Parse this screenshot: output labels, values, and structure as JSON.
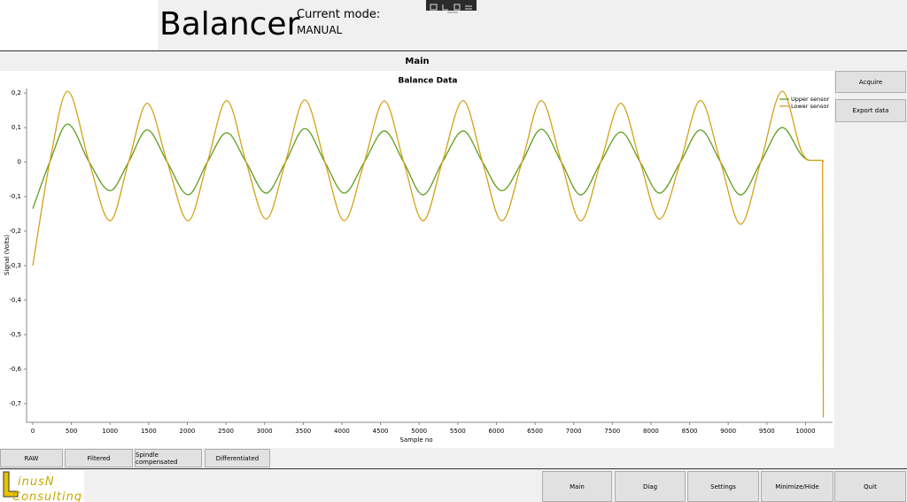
{
  "header": {
    "title": "Balancer",
    "mode_label": "Current mode:",
    "mode": "MANUAL"
  },
  "panel_title": "Main",
  "side_buttons": [
    "Acquire",
    "Export data"
  ],
  "tabs": [
    "RAW",
    "Filtered",
    "Spindle compensated",
    "Differentiated"
  ],
  "nav_buttons": [
    "Main",
    "Diag",
    "Settings",
    "Minimize/Hide",
    "Quit"
  ],
  "logo": [
    "inusN",
    "Consulting"
  ],
  "chart_data": {
    "type": "line",
    "title": "Balance Data",
    "x_label": "Sample no",
    "y_label": "Signal (Volts)",
    "x": [
      0,
      220,
      450,
      730,
      1000,
      1240,
      1480,
      1740,
      2010,
      2260,
      2510,
      2760,
      3020,
      3270,
      3520,
      3780,
      4030,
      4290,
      4550,
      4800,
      5050,
      5300,
      5570,
      5820,
      6070,
      6330,
      6580,
      6840,
      7090,
      7350,
      7610,
      7860,
      8110,
      8380,
      8640,
      8900,
      9160,
      9420,
      9700,
      9950,
      10050,
      10220,
      10230
    ],
    "series": [
      {
        "name": "Upper sensor",
        "color": "#5c9e1c",
        "values": [
          -0.135,
          0,
          0.11,
          0,
          -0.083,
          0,
          0.093,
          0,
          -0.095,
          0,
          0.085,
          0,
          -0.09,
          0,
          0.097,
          0,
          -0.09,
          0,
          0.09,
          0,
          -0.095,
          0,
          0.09,
          0,
          -0.083,
          0,
          0.095,
          0,
          -0.095,
          0,
          0.087,
          0,
          -0.09,
          0,
          0.093,
          0,
          -0.095,
          0,
          0.1,
          0.02,
          0.005,
          0.005,
          0
        ]
      },
      {
        "name": "Lower sensor",
        "color": "#d4a017",
        "values": [
          -0.3,
          0,
          0.205,
          0,
          -0.17,
          0,
          0.17,
          0,
          -0.17,
          0,
          0.178,
          0,
          -0.165,
          0,
          0.18,
          0,
          -0.17,
          0,
          0.177,
          0,
          -0.17,
          0,
          0.178,
          0,
          -0.17,
          0,
          0.178,
          0,
          -0.17,
          0,
          0.17,
          0,
          -0.165,
          0,
          0.178,
          0,
          -0.18,
          0,
          0.205,
          0.03,
          0.005,
          0.005,
          -0.74
        ]
      }
    ],
    "xlim": [
      -80,
      10350
    ],
    "ylim": [
      -0.754,
      0.213
    ],
    "xticks": [
      0,
      500,
      1000,
      1500,
      2000,
      2500,
      3000,
      3500,
      4000,
      4500,
      5000,
      5500,
      6000,
      6500,
      7000,
      7500,
      8000,
      8500,
      9000,
      9500,
      10000
    ],
    "yticks": [
      {
        "value": 0.2,
        "label": "0,2"
      },
      {
        "value": 0.1,
        "label": "0,1"
      },
      0,
      {
        "value": -0.1,
        "label": "-0,1"
      },
      {
        "value": -0.2,
        "label": "-0,2"
      },
      {
        "value": -0.3,
        "label": "-0,3"
      },
      {
        "value": -0.4,
        "label": "-0,4"
      },
      {
        "value": -0.5,
        "label": "-0,5"
      },
      {
        "value": -0.6,
        "label": "-0,6"
      },
      {
        "value": -0.7,
        "label": "-0,7"
      }
    ],
    "grid": false,
    "legend": "top-right"
  }
}
